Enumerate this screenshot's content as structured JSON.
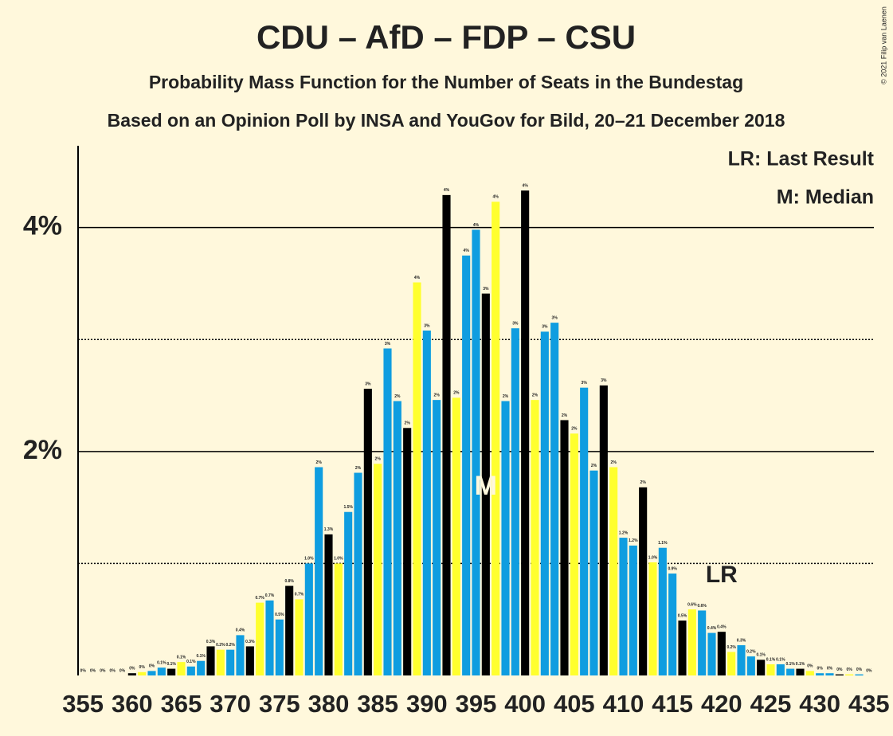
{
  "chart_data": {
    "type": "bar",
    "title": "CDU – AfD – FDP – CSU",
    "subtitle": "Probability Mass Function for the Number of Seats in the Bundestag",
    "subtitle2": "Based on an Opinion Poll by INSA and YouGov for Bild, 20–21 December 2018",
    "copyright": "© 2021 Filip van Laenen",
    "legend": [
      "LR: Last Result",
      "M: Median"
    ],
    "x": [
      355,
      356,
      357,
      358,
      359,
      360,
      361,
      362,
      363,
      364,
      365,
      366,
      367,
      368,
      369,
      370,
      371,
      372,
      373,
      374,
      375,
      376,
      377,
      378,
      379,
      380,
      381,
      382,
      383,
      384,
      385,
      386,
      387,
      388,
      389,
      390,
      391,
      392,
      393,
      394,
      395,
      396,
      397,
      398,
      399,
      400,
      401,
      402,
      403,
      404,
      405,
      406,
      407,
      408,
      409,
      410,
      411,
      412,
      413,
      414,
      415,
      416,
      417,
      418,
      419,
      420,
      421,
      422,
      423,
      424,
      425,
      426,
      427,
      428,
      429,
      430,
      431,
      432,
      433,
      434,
      435
    ],
    "values": [
      0,
      0,
      0,
      0,
      0,
      0.02,
      0.03,
      0.04,
      0.07,
      0.06,
      0.12,
      0.08,
      0.13,
      0.26,
      0.23,
      0.23,
      0.36,
      0.26,
      0.65,
      0.67,
      0.5,
      0.8,
      0.68,
      1.0,
      1.86,
      1.26,
      1.0,
      1.46,
      1.81,
      2.56,
      1.89,
      2.92,
      2.45,
      2.21,
      3.51,
      3.08,
      2.46,
      4.29,
      2.48,
      3.75,
      3.98,
      3.41,
      4.23,
      2.45,
      3.1,
      4.33,
      2.46,
      3.07,
      3.15,
      2.28,
      2.16,
      2.57,
      1.83,
      2.59,
      1.86,
      1.23,
      1.16,
      1.68,
      1.01,
      1.14,
      0.91,
      0.49,
      0.59,
      0.58,
      0.38,
      0.39,
      0.21,
      0.27,
      0.17,
      0.14,
      0.1,
      0.1,
      0.06,
      0.06,
      0.04,
      0.02,
      0.02,
      0.01,
      0.01,
      0.01,
      0
    ],
    "value_labels": [
      "0%",
      "0%",
      "0%",
      "0%",
      "0%",
      "0%",
      "0%",
      "0%",
      "0.1%",
      "0.1%",
      "0.1%",
      "0.1%",
      "0.1%",
      "0.3%",
      "0.2%",
      "0.2%",
      "0.4%",
      "0.3%",
      "0.7%",
      "0.7%",
      "0.5%",
      "0.8%",
      "0.7%",
      "1.0%",
      "2%",
      "1.3%",
      "1.0%",
      "1.5%",
      "2%",
      "3%",
      "2%",
      "3%",
      "2%",
      "2%",
      "4%",
      "3%",
      "2%",
      "4%",
      "2%",
      "4%",
      "4%",
      "3%",
      "4%",
      "2%",
      "3%",
      "4%",
      "2%",
      "3%",
      "3%",
      "2%",
      "2%",
      "3%",
      "2%",
      "3%",
      "2%",
      "1.2%",
      "1.2%",
      "2%",
      "1.0%",
      "1.1%",
      "0.9%",
      "0.5%",
      "0.6%",
      "0.6%",
      "0.4%",
      "0.4%",
      "0.2%",
      "0.3%",
      "0.2%",
      "0.1%",
      "0.1%",
      "0.1%",
      "0.1%",
      "0.1%",
      "0%",
      "0%",
      "0%",
      "0%",
      "0%",
      "0%",
      "0%"
    ],
    "palette": [
      "#0f9de0",
      "#000000",
      "#ffff2e",
      "#0f9de0"
    ],
    "xlim": [
      354.5,
      435.5
    ],
    "xticks": [
      355,
      360,
      365,
      370,
      375,
      380,
      385,
      390,
      395,
      400,
      405,
      410,
      415,
      420,
      425,
      430,
      435
    ],
    "ylim": [
      0,
      4.73
    ],
    "yticks": [
      {
        "value": 2,
        "label": "2%"
      },
      {
        "value": 4,
        "label": "4%"
      }
    ],
    "yminor": [
      1,
      3
    ],
    "median": 396,
    "median_label": "M",
    "last_result": 420,
    "last_result_label": "LR"
  }
}
